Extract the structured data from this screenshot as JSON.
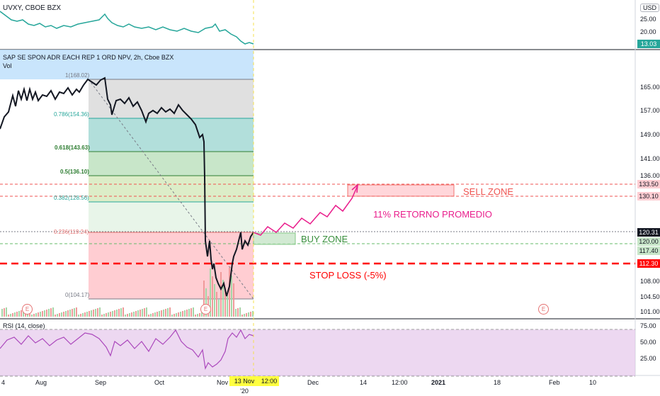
{
  "uvxy_panel": {
    "title": "UVXY, CBOE BZX",
    "currency": "USD",
    "axis_ticks": [
      "25.00",
      "20.00"
    ],
    "last_price": "13.03"
  },
  "main_panel": {
    "title": "SAP SE SPON ADR EACH REP 1 ORD NPV, 2h, Cboe BZX",
    "subtitle": "Vol",
    "axis_ticks": [
      "165.00",
      "157.00",
      "149.00",
      "141.00",
      "136.00",
      "108.00",
      "104.50",
      "101.00"
    ],
    "price_tags": [
      {
        "label": "133.50",
        "color": "#ffcdd2",
        "text_color": "#131722"
      },
      {
        "label": "130.10",
        "color": "#ffcdd2",
        "text_color": "#131722"
      },
      {
        "label": "120.31",
        "color": "#131722",
        "text_color": "#ffffff"
      },
      {
        "label": "120.00",
        "color": "#c8e6c9",
        "text_color": "#131722"
      },
      {
        "label": "117.40",
        "color": "#c8e6c9",
        "text_color": "#131722"
      },
      {
        "label": "112.30",
        "color": "#ff0000",
        "text_color": "#ffffff"
      }
    ],
    "fib_levels": [
      {
        "label": "1(168.02)",
        "color": "#787b86",
        "value": 168.02
      },
      {
        "label": "0.786(154.36)",
        "color": "#26a69a",
        "value": 154.36
      },
      {
        "label": "0.618(143.63)",
        "color": "#2e7d32",
        "value": 143.63
      },
      {
        "label": "0.5(136.10)",
        "color": "#2e7d32",
        "value": 136.1
      },
      {
        "label": "0.382(128.56)",
        "color": "#26a69a",
        "value": 128.56
      },
      {
        "label": "0.236(119.24)",
        "color": "#e57373",
        "value": 119.24
      },
      {
        "label": "0(104.17)",
        "color": "#787b86",
        "value": 104.17
      }
    ],
    "annotations": {
      "sell_zone": "SELL ZONE",
      "buy_zone": "BUY ZONE",
      "target": "11% RETORNO PROMEDIO",
      "stop_loss": "STOP LOSS (-5%)"
    },
    "earnings_marker": "E"
  },
  "rsi_panel": {
    "title": "RSI (14, close)",
    "axis_ticks": [
      "75.00",
      "50.00",
      "25.00"
    ]
  },
  "time_axis": {
    "labels": [
      "4",
      "Aug",
      "Sep",
      "Oct",
      "Nov",
      "Dec",
      "14",
      "12:00",
      "2021",
      "18",
      "Feb",
      "10"
    ],
    "highlight": [
      "13 Nov '20",
      "12:00"
    ]
  },
  "colors": {
    "uvxy_line": "#26a69a",
    "price_line": "#131722",
    "projection": "#e91e8c",
    "stop_loss": "#ff0000",
    "rsi_line": "#ab47bc",
    "rsi_band": "#e1bee7"
  }
}
